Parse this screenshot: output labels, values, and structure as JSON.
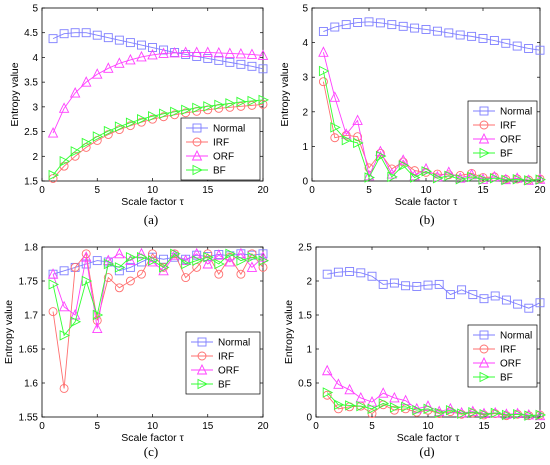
{
  "chart_data": [
    {
      "type": "line",
      "caption": "(a)",
      "xlabel": "Scale factor τ",
      "ylabel": "Entropy value",
      "xlim": [
        0,
        20
      ],
      "ylim": [
        1.5,
        5
      ],
      "xticks": [
        "0",
        "5",
        "10",
        "15",
        "20"
      ],
      "yticks": [
        "1.5",
        "2",
        "2.5",
        "3",
        "3.5",
        "4",
        "4.5",
        "5"
      ],
      "legend": "bottom-right",
      "x": [
        1,
        2,
        3,
        4,
        5,
        6,
        7,
        8,
        9,
        10,
        11,
        12,
        13,
        14,
        15,
        16,
        17,
        18,
        19,
        20
      ],
      "series": [
        {
          "name": "Normal",
          "color": "#7f7fff",
          "marker": "square",
          "values": [
            4.38,
            4.48,
            4.5,
            4.5,
            4.45,
            4.4,
            4.35,
            4.3,
            4.25,
            4.2,
            4.15,
            4.1,
            4.06,
            4.02,
            3.98,
            3.94,
            3.9,
            3.86,
            3.82,
            3.77
          ]
        },
        {
          "name": "IRF",
          "color": "#ff6f6f",
          "marker": "circle",
          "values": [
            1.55,
            1.8,
            2.0,
            2.18,
            2.32,
            2.44,
            2.54,
            2.62,
            2.69,
            2.75,
            2.8,
            2.84,
            2.88,
            2.91,
            2.94,
            2.97,
            2.99,
            3.01,
            3.03,
            3.05
          ]
        },
        {
          "name": "ORF",
          "color": "#ff3fff",
          "marker": "triangle-up",
          "values": [
            2.47,
            2.97,
            3.28,
            3.5,
            3.66,
            3.78,
            3.88,
            3.95,
            4.01,
            4.05,
            4.08,
            4.09,
            4.1,
            4.1,
            4.1,
            4.09,
            4.08,
            4.07,
            4.06,
            4.04
          ]
        },
        {
          "name": "BF",
          "color": "#33ff33",
          "marker": "triangle-right",
          "values": [
            1.62,
            1.9,
            2.1,
            2.27,
            2.4,
            2.51,
            2.6,
            2.68,
            2.75,
            2.81,
            2.86,
            2.9,
            2.94,
            2.98,
            3.01,
            3.04,
            3.07,
            3.1,
            3.12,
            3.14
          ]
        }
      ]
    },
    {
      "type": "line",
      "caption": "(b)",
      "xlabel": "Scale factor τ",
      "ylabel": "Entropy value",
      "xlim": [
        0,
        20
      ],
      "ylim": [
        0,
        5
      ],
      "xticks": [
        "0",
        "5",
        "10",
        "15",
        "20"
      ],
      "yticks": [
        "0",
        "1",
        "2",
        "3",
        "4",
        "5"
      ],
      "legend": "right",
      "x": [
        1,
        2,
        3,
        4,
        5,
        6,
        7,
        8,
        9,
        10,
        11,
        12,
        13,
        14,
        15,
        16,
        17,
        18,
        19,
        20
      ],
      "series": [
        {
          "name": "Normal",
          "color": "#7f7fff",
          "marker": "square",
          "values": [
            4.32,
            4.45,
            4.52,
            4.58,
            4.6,
            4.57,
            4.52,
            4.47,
            4.42,
            4.38,
            4.33,
            4.28,
            4.22,
            4.18,
            4.12,
            4.06,
            3.98,
            3.9,
            3.83,
            3.78
          ]
        },
        {
          "name": "IRF",
          "color": "#ff6f6f",
          "marker": "circle",
          "values": [
            2.87,
            1.25,
            1.32,
            1.28,
            0.38,
            0.8,
            0.35,
            0.55,
            0.3,
            0.25,
            0.2,
            0.18,
            0.16,
            0.22,
            0.1,
            0.12,
            0.05,
            0.06,
            0.03,
            0.06
          ]
        },
        {
          "name": "ORF",
          "color": "#ff3fff",
          "marker": "triangle-up",
          "values": [
            3.72,
            2.42,
            1.35,
            1.75,
            0.15,
            0.85,
            0.2,
            0.6,
            0.15,
            0.35,
            0.12,
            0.25,
            0.08,
            0.18,
            0.05,
            0.12,
            0.04,
            0.08,
            0.02,
            0.05
          ]
        },
        {
          "name": "BF",
          "color": "#33ff33",
          "marker": "triangle-right",
          "values": [
            3.18,
            1.55,
            1.18,
            1.1,
            0.1,
            0.72,
            0.12,
            0.45,
            0.1,
            0.28,
            0.08,
            0.15,
            0.05,
            0.12,
            0.04,
            0.08,
            0.03,
            0.05,
            0.02,
            0.04
          ]
        }
      ]
    },
    {
      "type": "line",
      "caption": "(c)",
      "xlabel": "Scale factor τ",
      "ylabel": "Entropy value",
      "xlim": [
        0,
        20
      ],
      "ylim": [
        1.55,
        1.8
      ],
      "xticks": [
        "0",
        "5",
        "10",
        "15",
        "20"
      ],
      "yticks": [
        "1.55",
        "1.6",
        "1.65",
        "1.7",
        "1.75",
        "1.8"
      ],
      "legend": "bottom-right",
      "x": [
        1,
        2,
        3,
        4,
        5,
        6,
        7,
        8,
        9,
        10,
        11,
        12,
        13,
        14,
        15,
        16,
        17,
        18,
        19,
        20
      ],
      "series": [
        {
          "name": "Normal",
          "color": "#7f7fff",
          "marker": "square",
          "values": [
            1.76,
            1.765,
            1.77,
            1.775,
            1.78,
            1.778,
            1.765,
            1.77,
            1.778,
            1.785,
            1.782,
            1.785,
            1.782,
            1.788,
            1.786,
            1.789,
            1.787,
            1.79,
            1.788,
            1.79
          ]
        },
        {
          "name": "IRF",
          "color": "#ff6f6f",
          "marker": "circle",
          "values": [
            1.705,
            1.592,
            1.77,
            1.79,
            1.692,
            1.755,
            1.74,
            1.75,
            1.76,
            1.79,
            1.77,
            1.79,
            1.755,
            1.77,
            1.79,
            1.76,
            1.785,
            1.76,
            1.79,
            1.77
          ]
        },
        {
          "name": "ORF",
          "color": "#ff3fff",
          "marker": "triangle-up",
          "values": [
            1.76,
            1.712,
            1.7,
            1.785,
            1.68,
            1.78,
            1.79,
            1.78,
            1.79,
            1.778,
            1.765,
            1.788,
            1.78,
            1.79,
            1.775,
            1.788,
            1.778,
            1.79,
            1.77,
            1.785
          ]
        },
        {
          "name": "BF",
          "color": "#33ff33",
          "marker": "triangle-right",
          "values": [
            1.745,
            1.67,
            1.69,
            1.75,
            1.7,
            1.775,
            1.77,
            1.785,
            1.785,
            1.78,
            1.77,
            1.79,
            1.775,
            1.78,
            1.785,
            1.775,
            1.79,
            1.78,
            1.785,
            1.78
          ]
        }
      ]
    },
    {
      "type": "line",
      "caption": "(d)",
      "xlabel": "Scale factor τ",
      "ylabel": "Entropy value",
      "xlim": [
        0,
        20
      ],
      "ylim": [
        0,
        2.5
      ],
      "xticks": [
        "0",
        "5",
        "10",
        "15",
        "20"
      ],
      "yticks": [
        "0",
        "0.5",
        "1",
        "1.5",
        "2",
        "2.5"
      ],
      "legend": "right",
      "x": [
        1,
        2,
        3,
        4,
        5,
        6,
        7,
        8,
        9,
        10,
        11,
        12,
        13,
        14,
        15,
        16,
        17,
        18,
        19,
        20
      ],
      "series": [
        {
          "name": "Normal",
          "color": "#7f7fff",
          "marker": "square",
          "values": [
            2.1,
            2.13,
            2.14,
            2.12,
            2.07,
            1.95,
            1.97,
            1.93,
            1.92,
            1.94,
            1.95,
            1.8,
            1.87,
            1.8,
            1.74,
            1.78,
            1.72,
            1.66,
            1.6,
            1.68
          ]
        },
        {
          "name": "IRF",
          "color": "#ff6f6f",
          "marker": "circle",
          "values": [
            0.32,
            0.12,
            0.15,
            0.16,
            0.05,
            0.18,
            0.1,
            0.12,
            0.07,
            0.1,
            0.05,
            0.08,
            0.04,
            0.06,
            0.03,
            0.05,
            0.02,
            0.04,
            0.02,
            0.03
          ]
        },
        {
          "name": "ORF",
          "color": "#ff3fff",
          "marker": "triangle-up",
          "values": [
            0.68,
            0.48,
            0.4,
            0.28,
            0.22,
            0.35,
            0.28,
            0.24,
            0.12,
            0.16,
            0.08,
            0.12,
            0.06,
            0.08,
            0.05,
            0.06,
            0.04,
            0.05,
            0.03,
            0.02
          ]
        },
        {
          "name": "BF",
          "color": "#33ff33",
          "marker": "triangle-right",
          "values": [
            0.36,
            0.18,
            0.17,
            0.16,
            0.12,
            0.2,
            0.14,
            0.15,
            0.1,
            0.12,
            0.06,
            0.1,
            0.05,
            0.07,
            0.04,
            0.06,
            0.03,
            0.04,
            0.02,
            0.03
          ]
        }
      ]
    }
  ]
}
